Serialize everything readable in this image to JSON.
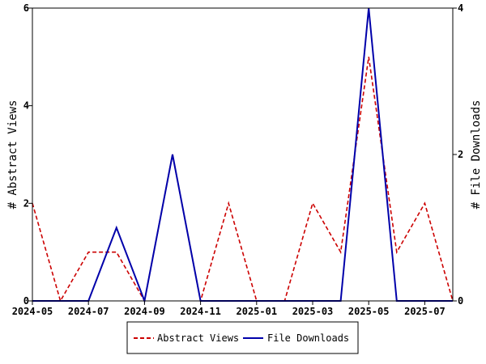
{
  "chart_data": {
    "type": "line",
    "title": "",
    "x": [
      "2024-05",
      "2024-06",
      "2024-07",
      "2024-08",
      "2024-09",
      "2024-10",
      "2024-11",
      "2024-12",
      "2025-01",
      "2025-02",
      "2025-03",
      "2025-04",
      "2025-05",
      "2025-06",
      "2025-07",
      "2025-08"
    ],
    "x_ticks": [
      "2024-05",
      "2024-07",
      "2024-09",
      "2024-11",
      "2025-01",
      "2025-03",
      "2025-05",
      "2025-07"
    ],
    "ylabel_left": "# Abstract Views",
    "ylabel_right": "# File Downloads",
    "ylim_left": [
      0,
      6
    ],
    "ylim_right": [
      0,
      4
    ],
    "yticks_left": [
      0,
      2,
      4,
      6
    ],
    "yticks_right": [
      0,
      2,
      4
    ],
    "grid": false,
    "legend_position": "bottom",
    "series": [
      {
        "name": "Abstract Views",
        "axis": "left",
        "style": "dashed",
        "color": "#cc0000",
        "values": [
          2,
          0,
          1,
          1,
          0,
          3,
          0,
          2,
          0,
          0,
          2,
          1,
          5,
          1,
          2,
          0
        ]
      },
      {
        "name": "File Downloads",
        "axis": "right",
        "style": "solid",
        "color": "#0000aa",
        "values": [
          0,
          0,
          0,
          1,
          0,
          2,
          0,
          0,
          0,
          0,
          0,
          0,
          4,
          0,
          0,
          0
        ]
      }
    ]
  }
}
